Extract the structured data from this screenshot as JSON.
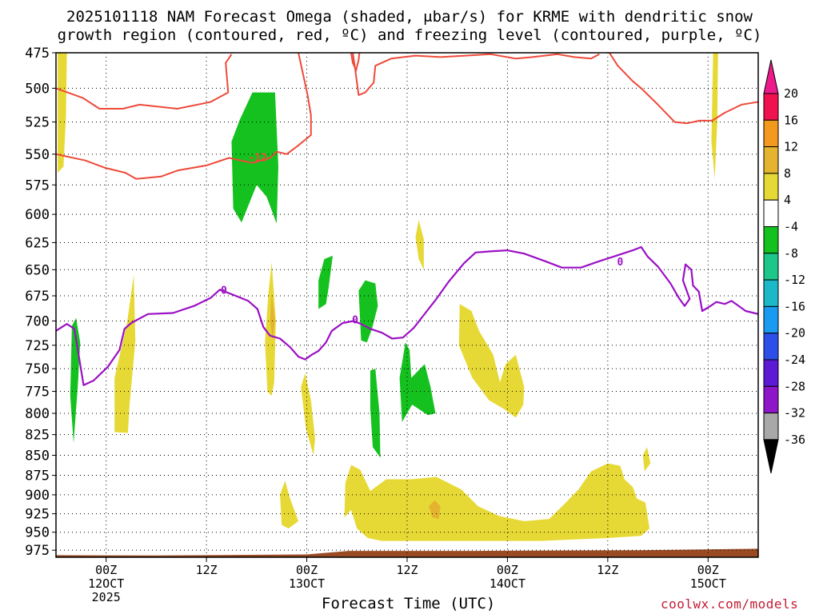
{
  "title_line1": "2025101118 NAM Forecast Omega (shaded, μbar/s) for KRME with dendritic snow",
  "title_line2": "growth region (contoured, red, ºC) and freezing level (contoured, purple, ºC)",
  "credit": "coolwx.com/models",
  "chart_data": {
    "type": "heatmap",
    "title": "2025101118 NAM Forecast Omega (shaded, μbar/s) for KRME with dendritic snow growth region (contoured, red, ºC) and freezing level (contoured, purple, ºC)",
    "xlabel": "Forecast Time (UTC)",
    "ylabel": "",
    "x_ticks": [
      {
        "hour": 6,
        "label": "00Z",
        "day": "12OCT",
        "year": "2025"
      },
      {
        "hour": 18,
        "label": "12Z"
      },
      {
        "hour": 30,
        "label": "00Z",
        "day": "13OCT"
      },
      {
        "hour": 42,
        "label": "12Z"
      },
      {
        "hour": 54,
        "label": "00Z",
        "day": "14OCT"
      },
      {
        "hour": 66,
        "label": "12Z"
      },
      {
        "hour": 78,
        "label": "00Z",
        "day": "15OCT"
      }
    ],
    "x_range_hours": [
      0,
      84
    ],
    "y_ticks": [
      475,
      500,
      525,
      550,
      575,
      600,
      625,
      650,
      675,
      700,
      725,
      750,
      775,
      800,
      825,
      850,
      875,
      900,
      925,
      950,
      975
    ],
    "y_range_hpa": [
      475,
      985
    ],
    "y_scale": "log-pressure",
    "grid": "dotted",
    "colorbar": {
      "labels": [
        "20",
        "16",
        "12",
        "8",
        "4",
        "-4",
        "-8",
        "-12",
        "-16",
        "-20",
        "-24",
        "-28",
        "-32",
        "-36"
      ],
      "colors": [
        "#f0124e",
        "#f39a1e",
        "#e4b430",
        "#e7d935",
        "#ffffff",
        "#14c11f",
        "#1dc78a",
        "#1bb9c8",
        "#1a9af0",
        "#2b4fe8",
        "#5c1ad4",
        "#8f15c8",
        "#a8a8a8"
      ],
      "top_triangle": "#ec1a8a",
      "bottom_triangle": "#000000"
    },
    "contours": [
      {
        "name": "dendritic snow growth region",
        "color": "#ee4a3a",
        "label": "-12"
      },
      {
        "name": "freezing level",
        "color": "#9b10c4",
        "label": "0"
      }
    ],
    "omega_regions": [
      {
        "value": 4,
        "points": [
          [
            0.2,
            475
          ],
          [
            1.3,
            475
          ],
          [
            1.2,
            520
          ],
          [
            0.9,
            560
          ],
          [
            0.2,
            565
          ]
        ]
      },
      {
        "value": -4,
        "points": [
          [
            1.9,
            705
          ],
          [
            2.4,
            697
          ],
          [
            2.9,
            722
          ],
          [
            2.6,
            770
          ],
          [
            2.1,
            835
          ],
          [
            1.7,
            780
          ]
        ]
      },
      {
        "value": 4,
        "points": [
          [
            7.0,
            760
          ],
          [
            8.5,
            702
          ],
          [
            9.3,
            655
          ],
          [
            9.5,
            720
          ],
          [
            8.8,
            790
          ],
          [
            8.6,
            823
          ],
          [
            7.0,
            822
          ]
        ]
      },
      {
        "value": -4,
        "points": [
          [
            21.2,
            595
          ],
          [
            21.0,
            540
          ],
          [
            22.0,
            523
          ],
          [
            23.5,
            503
          ],
          [
            26.2,
            503
          ],
          [
            26.6,
            560
          ],
          [
            26.4,
            608
          ],
          [
            25.2,
            585
          ],
          [
            24.0,
            575
          ],
          [
            22.2,
            607
          ]
        ]
      },
      {
        "value": 4,
        "points": [
          [
            25.0,
            722
          ],
          [
            25.4,
            673
          ],
          [
            25.8,
            643
          ],
          [
            26.3,
            700
          ],
          [
            26.1,
            765
          ],
          [
            25.8,
            780
          ],
          [
            25.3,
            775
          ]
        ]
      },
      {
        "value": 8,
        "points": [
          [
            25.8,
            672
          ],
          [
            26.2,
            700
          ],
          [
            25.9,
            720
          ],
          [
            25.6,
            700
          ]
        ]
      },
      {
        "value": 4,
        "points": [
          [
            29.3,
            770
          ],
          [
            29.8,
            755
          ],
          [
            30.5,
            785
          ],
          [
            31.0,
            830
          ],
          [
            30.8,
            850
          ],
          [
            29.9,
            818
          ]
        ]
      },
      {
        "value": 4,
        "points": [
          [
            27.0,
            940
          ],
          [
            26.8,
            900
          ],
          [
            27.4,
            882
          ],
          [
            28.0,
            905
          ],
          [
            29.0,
            935
          ],
          [
            27.8,
            945
          ]
        ]
      },
      {
        "value": -4,
        "points": [
          [
            31.4,
            660
          ],
          [
            32.1,
            640
          ],
          [
            33.1,
            637
          ],
          [
            32.6,
            668
          ],
          [
            32.3,
            683
          ],
          [
            31.4,
            688
          ]
        ]
      },
      {
        "value": -4,
        "points": [
          [
            36.2,
            670
          ],
          [
            37.0,
            660
          ],
          [
            38.2,
            663
          ],
          [
            38.5,
            685
          ],
          [
            37.8,
            708
          ],
          [
            37.2,
            722
          ],
          [
            36.5,
            720
          ]
        ]
      },
      {
        "value": -4,
        "points": [
          [
            37.6,
            795
          ],
          [
            37.6,
            752
          ],
          [
            38.2,
            750
          ],
          [
            38.7,
            800
          ],
          [
            38.8,
            853
          ],
          [
            37.9,
            840
          ]
        ]
      },
      {
        "value": -4,
        "points": [
          [
            41.1,
            760
          ],
          [
            41.8,
            722
          ],
          [
            42.3,
            730
          ],
          [
            42.5,
            760
          ],
          [
            44.1,
            745
          ],
          [
            44.8,
            770
          ],
          [
            45.4,
            800
          ],
          [
            44.5,
            802
          ],
          [
            42.6,
            790
          ],
          [
            41.4,
            810
          ]
        ]
      },
      {
        "value": 4,
        "points": [
          [
            43.0,
            620
          ],
          [
            43.4,
            605
          ],
          [
            44.0,
            622
          ],
          [
            44.0,
            650
          ],
          [
            43.4,
            640
          ]
        ]
      },
      {
        "value": 4,
        "points": [
          [
            48.2,
            725
          ],
          [
            48.3,
            683
          ],
          [
            49.7,
            690
          ],
          [
            50.6,
            710
          ],
          [
            52.3,
            735
          ],
          [
            53.1,
            765
          ],
          [
            53.8,
            745
          ],
          [
            55.0,
            735
          ],
          [
            56.0,
            770
          ],
          [
            55.9,
            790
          ],
          [
            55.0,
            805
          ],
          [
            53.6,
            795
          ],
          [
            51.8,
            785
          ],
          [
            49.8,
            760
          ]
        ]
      },
      {
        "value": 4,
        "points": [
          [
            34.5,
            930
          ],
          [
            34.6,
            885
          ],
          [
            35.3,
            862
          ],
          [
            36.4,
            868
          ],
          [
            37.6,
            895
          ],
          [
            39.5,
            880
          ],
          [
            42.5,
            880
          ],
          [
            45.5,
            877
          ],
          [
            48.5,
            893
          ],
          [
            50.5,
            915
          ],
          [
            53.0,
            928
          ],
          [
            56.0,
            935
          ],
          [
            59.0,
            932
          ],
          [
            61.0,
            910
          ],
          [
            62.5,
            893
          ],
          [
            64.0,
            870
          ],
          [
            66.0,
            860
          ],
          [
            67.5,
            863
          ],
          [
            68.0,
            880
          ],
          [
            69.0,
            890
          ],
          [
            69.5,
            905
          ],
          [
            70.5,
            910
          ],
          [
            71.0,
            945
          ],
          [
            70.0,
            955
          ],
          [
            66.0,
            958
          ],
          [
            62.0,
            960
          ],
          [
            58.0,
            962
          ],
          [
            52.0,
            962
          ],
          [
            45.0,
            962
          ],
          [
            39.0,
            962
          ],
          [
            37.3,
            958
          ],
          [
            36.0,
            945
          ],
          [
            35.3,
            920
          ]
        ]
      },
      {
        "value": 8,
        "points": [
          [
            44.6,
            915
          ],
          [
            45.3,
            907
          ],
          [
            46.0,
            915
          ],
          [
            45.8,
            932
          ],
          [
            45.0,
            930
          ]
        ]
      },
      {
        "value": 4,
        "points": [
          [
            70.2,
            850
          ],
          [
            70.7,
            840
          ],
          [
            71.1,
            860
          ],
          [
            70.4,
            870
          ]
        ]
      },
      {
        "value": 4,
        "points": [
          [
            78.6,
            475
          ],
          [
            79.2,
            475
          ],
          [
            79.1,
            525
          ],
          [
            78.8,
            570
          ],
          [
            78.4,
            540
          ]
        ]
      }
    ],
    "dendritic_zone": {
      "top": [
        [
          0,
          500
        ],
        [
          3.2,
          507
        ],
        [
          5.2,
          515
        ],
        [
          8.0,
          515
        ],
        [
          10.0,
          512
        ],
        [
          14.5,
          515
        ],
        [
          18.5,
          510
        ],
        [
          20.6,
          503
        ],
        [
          20.3,
          482
        ],
        [
          21.0,
          476
        ]
      ],
      "top2": [
        [
          29.0,
          475
        ],
        [
          30.1,
          505
        ],
        [
          30.5,
          520
        ],
        [
          30.5,
          535
        ],
        [
          29.0,
          543
        ],
        [
          27.6,
          550
        ],
        [
          26.4,
          548
        ],
        [
          25.6,
          553
        ],
        [
          23.5,
          557
        ],
        [
          20.7,
          553
        ],
        [
          18.0,
          559
        ],
        [
          14.6,
          563
        ],
        [
          12.6,
          568
        ],
        [
          9.6,
          570
        ],
        [
          8.3,
          565
        ],
        [
          5.9,
          561
        ],
        [
          3.5,
          555
        ],
        [
          0,
          550
        ]
      ],
      "top3": [
        [
          35.5,
          475
        ],
        [
          35.8,
          487
        ],
        [
          36.2,
          505
        ],
        [
          37.0,
          503
        ],
        [
          38.0,
          496
        ],
        [
          38.2,
          484
        ],
        [
          40.1,
          479
        ],
        [
          43.0,
          477
        ],
        [
          46.0,
          478
        ],
        [
          49.0,
          477
        ],
        [
          52.0,
          476
        ],
        [
          55.0,
          479
        ],
        [
          57.0,
          478
        ],
        [
          60.0,
          476
        ],
        [
          62.0,
          478
        ],
        [
          64.0,
          479
        ],
        [
          65.0,
          476
        ]
      ],
      "top4": [
        [
          66.2,
          475
        ],
        [
          67.2,
          484
        ],
        [
          69.0,
          495
        ],
        [
          70.0,
          500
        ],
        [
          72.0,
          512
        ],
        [
          74.0,
          525
        ],
        [
          75.5,
          526
        ],
        [
          77.0,
          524
        ],
        [
          78.5,
          524
        ],
        [
          80.0,
          518
        ],
        [
          81.0,
          515
        ],
        [
          82.0,
          512
        ],
        [
          83.0,
          511
        ],
        [
          84.0,
          510
        ]
      ]
    },
    "freezing_level": [
      [
        0,
        710
      ],
      [
        1.3,
        703
      ],
      [
        2.2,
        708
      ],
      [
        3.3,
        768
      ],
      [
        4.5,
        763
      ],
      [
        6.2,
        748
      ],
      [
        7.6,
        730
      ],
      [
        8.2,
        708
      ],
      [
        9.0,
        702
      ],
      [
        11.0,
        693
      ],
      [
        14.0,
        692
      ],
      [
        16.5,
        685
      ],
      [
        18.5,
        677
      ],
      [
        19.6,
        669
      ],
      [
        21.5,
        675
      ],
      [
        23.0,
        680
      ],
      [
        24.1,
        688
      ],
      [
        24.8,
        706
      ],
      [
        25.6,
        715
      ],
      [
        26.8,
        718
      ],
      [
        28.0,
        727
      ],
      [
        29.0,
        737
      ],
      [
        29.8,
        740
      ],
      [
        30.6,
        735
      ],
      [
        31.4,
        731
      ],
      [
        32.3,
        722
      ],
      [
        33.0,
        710
      ],
      [
        34.3,
        702
      ],
      [
        35.6,
        700
      ],
      [
        36.5,
        703
      ],
      [
        37.6,
        708
      ],
      [
        39.0,
        712
      ],
      [
        40.2,
        718
      ],
      [
        41.5,
        717
      ],
      [
        42.8,
        707
      ],
      [
        44.0,
        694
      ],
      [
        45.5,
        678
      ],
      [
        47.0,
        661
      ],
      [
        48.8,
        644
      ],
      [
        50.2,
        634
      ],
      [
        52.0,
        633
      ],
      [
        54.0,
        632
      ],
      [
        56.0,
        635
      ],
      [
        58.5,
        642
      ],
      [
        60.5,
        648
      ],
      [
        62.8,
        648
      ],
      [
        65.0,
        642
      ],
      [
        67.0,
        637
      ],
      [
        69.0,
        632
      ],
      [
        70.0,
        629
      ],
      [
        70.8,
        638
      ],
      [
        72.0,
        647
      ],
      [
        73.5,
        663
      ],
      [
        74.5,
        677
      ],
      [
        75.2,
        685
      ],
      [
        75.8,
        678
      ],
      [
        75.0,
        660
      ],
      [
        75.3,
        645
      ],
      [
        76.0,
        650
      ],
      [
        76.2,
        665
      ],
      [
        76.9,
        671
      ],
      [
        77.3,
        690
      ],
      [
        78.3,
        685
      ],
      [
        79.0,
        681
      ],
      [
        80.0,
        683
      ],
      [
        80.8,
        680
      ],
      [
        81.5,
        684
      ],
      [
        82.5,
        690
      ],
      [
        84.0,
        693
      ]
    ],
    "terrain": {
      "color": "#9a4b24",
      "top_hpa_left": 982,
      "top_hpa_right": 973
    }
  }
}
